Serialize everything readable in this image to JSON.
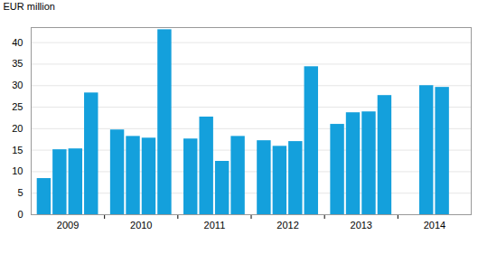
{
  "chart_data": {
    "type": "bar",
    "ylabel": "EUR million",
    "categories": [
      "2009",
      "2010",
      "2011",
      "2012",
      "2013",
      "2014"
    ],
    "values": [
      [
        8.4,
        15.1,
        15.3,
        28.3
      ],
      [
        19.7,
        18.2,
        17.8,
        43.0
      ],
      [
        17.6,
        22.7,
        12.4,
        18.2
      ],
      [
        17.2,
        15.9,
        17.0,
        34.4
      ],
      [
        21.0,
        23.7,
        23.9,
        27.7
      ],
      [
        30.0,
        29.6
      ]
    ],
    "color": "#14a0dc",
    "ylim": [
      0,
      43.5
    ],
    "yticks": [
      0,
      5,
      10,
      15,
      20,
      25,
      30,
      35,
      40
    ],
    "grid": true
  }
}
